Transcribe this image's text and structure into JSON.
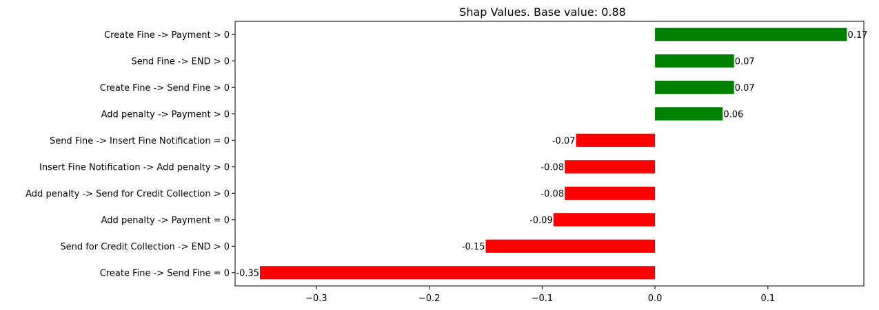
{
  "chart_data": {
    "type": "bar",
    "orientation": "horizontal",
    "title": "Shap Values. Base value: 0.88",
    "xlabel": "",
    "ylabel": "",
    "xlim": [
      -0.372,
      0.185
    ],
    "x_ticks": [
      -0.3,
      -0.2,
      -0.1,
      0.0,
      0.1
    ],
    "x_tick_labels": [
      "−0.3",
      "−0.2",
      "−0.1",
      "0.0",
      "0.1"
    ],
    "grid": false,
    "legend": "none",
    "colors": {
      "positive": "#008000",
      "negative": "#ff0000"
    },
    "categories": [
      "Create Fine -> Payment > 0",
      "Send Fine -> END > 0",
      "Create Fine -> Send Fine > 0",
      "Add penalty -> Payment > 0",
      "Send Fine -> Insert Fine Notification = 0",
      "Insert Fine Notification -> Add penalty > 0",
      "Add penalty -> Send for Credit Collection > 0",
      "Add penalty -> Payment = 0",
      "Send for Credit Collection -> END > 0",
      "Create Fine -> Send Fine = 0"
    ],
    "values": [
      0.17,
      0.07,
      0.07,
      0.06,
      -0.07,
      -0.08,
      -0.08,
      -0.09,
      -0.15,
      -0.35
    ],
    "value_labels": [
      "0.17",
      "0.07",
      "0.07",
      "0.06",
      "-0.07",
      "-0.08",
      "-0.08",
      "-0.09",
      "-0.15",
      "-0.35"
    ]
  }
}
